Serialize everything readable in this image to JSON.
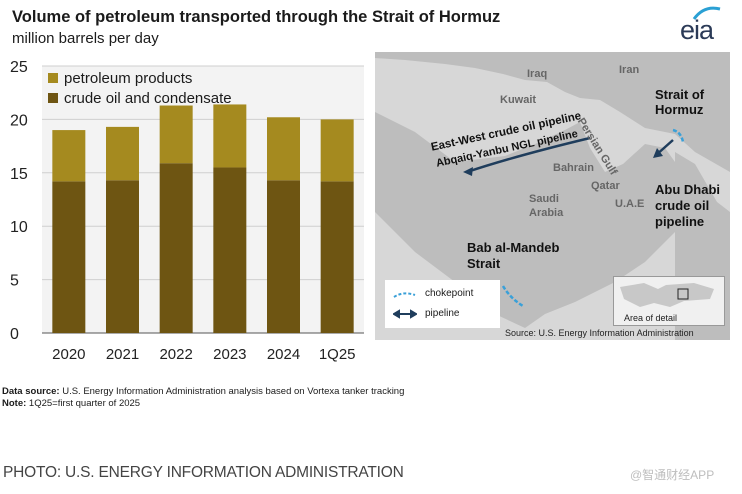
{
  "header": {
    "title": "Volume of petroleum transported through the Strait of Hormuz",
    "subtitle": "million barrels per day",
    "logo_text": "eia"
  },
  "colors": {
    "products": "#a58a1f",
    "crude": "#6e5512",
    "pipeline": "#1f3d5c",
    "chokepoint": "#3aa0d8",
    "map_land": "#bdbdbd",
    "map_water": "#d7d7d7"
  },
  "chart_data": {
    "type": "bar",
    "stacked": true,
    "categories": [
      "2020",
      "2021",
      "2022",
      "2023",
      "2024",
      "1Q25"
    ],
    "series": [
      {
        "name": "crude oil and condensate",
        "values": [
          14.2,
          14.3,
          15.9,
          15.5,
          14.3,
          14.2
        ]
      },
      {
        "name": "petroleum products",
        "values": [
          4.8,
          5.0,
          5.4,
          5.9,
          5.9,
          5.8
        ]
      }
    ],
    "ylim": [
      0,
      25
    ],
    "yticks": [
      "0",
      "5",
      "10",
      "15",
      "20",
      "25"
    ],
    "legend_order": [
      "petroleum products",
      "crude oil and condensate"
    ],
    "legend_position": "top-left",
    "grid": true
  },
  "map": {
    "labels": {
      "iraq": "Iraq",
      "iran": "Iran",
      "kuwait": "Kuwait",
      "persian_gulf": "Persian Gulf",
      "strait_hormuz": "Strait of Hormuz",
      "east_west": "East-West crude oil pipeline",
      "abqaiq": "Abqaiq-Yanbu NGL pipeline",
      "bahrain": "Bahrain",
      "qatar": "Qatar",
      "uae": "U.A.E",
      "saudi": "Saudi Arabia",
      "abu_dhabi": "Abu Dhabi crude oil pipeline",
      "bab": "Bab al-Mandeb Strait"
    },
    "legend": {
      "chokepoint": "chokepoint",
      "pipeline": "pipeline"
    },
    "inset_label": "Area of detail",
    "source": "Source: U.S. Energy Information Administration"
  },
  "notes": {
    "data_source_label": "Data source:",
    "data_source_text": " U.S. Energy Information Administration analysis based on Vortexa tanker tracking",
    "note_label": "Note:",
    "note_text": " 1Q25=first quarter of 2025"
  },
  "footer": {
    "credit": "PHOTO: U.S. ENERGY INFORMATION ADMINISTRATION",
    "watermark": "@智通财经APP"
  }
}
